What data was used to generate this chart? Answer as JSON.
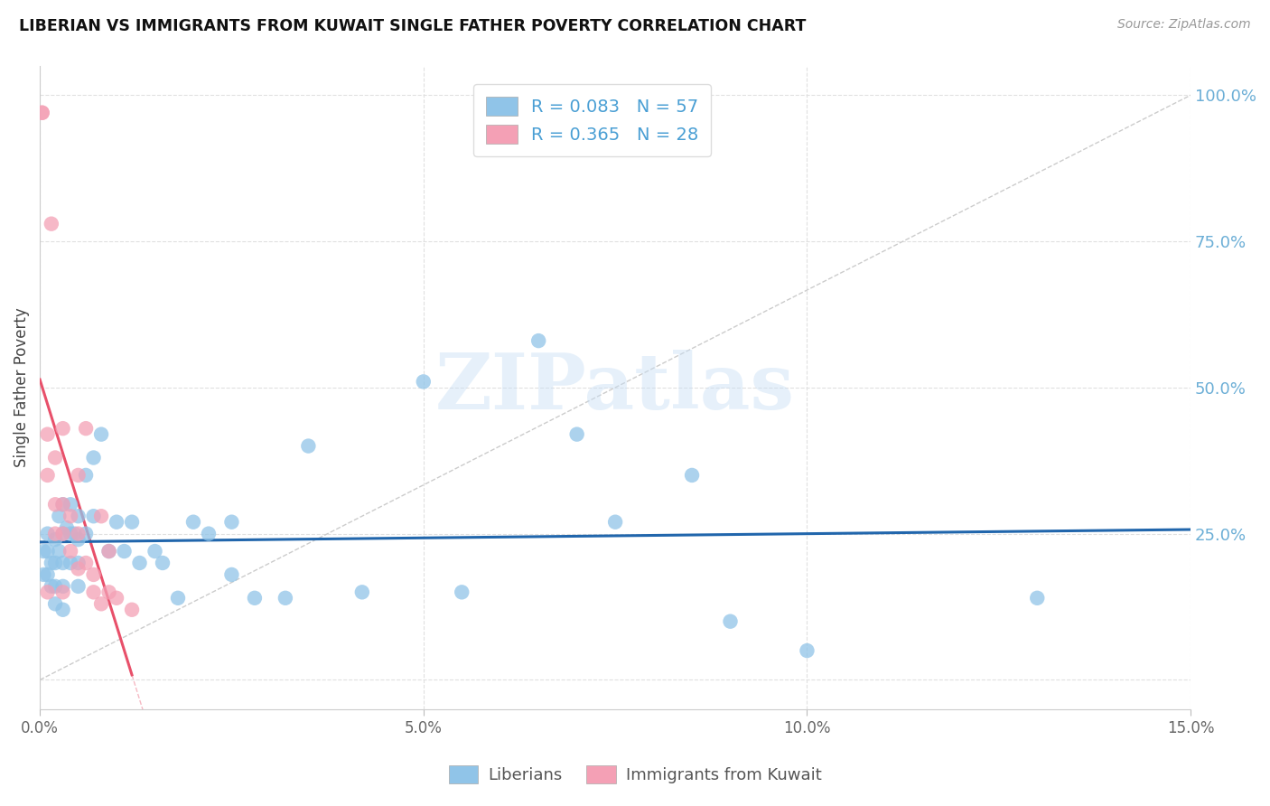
{
  "title": "LIBERIAN VS IMMIGRANTS FROM KUWAIT SINGLE FATHER POVERTY CORRELATION CHART",
  "source": "Source: ZipAtlas.com",
  "ylabel": "Single Father Poverty",
  "watermark": "ZIPatlas",
  "legend_label1": "Liberians",
  "legend_label2": "Immigrants from Kuwait",
  "R1": 0.083,
  "N1": 57,
  "R2": 0.365,
  "N2": 28,
  "color_blue": "#90c4e8",
  "color_pink": "#f4a0b5",
  "color_blue_line": "#2166ac",
  "color_pink_line": "#e8506a",
  "xlim": [
    0,
    0.15
  ],
  "ylim": [
    -0.02,
    1.05
  ],
  "plot_ylim": [
    0,
    1.0
  ],
  "yticks_right": [
    0.25,
    0.5,
    0.75,
    1.0
  ],
  "ytick_labels_right": [
    "25.0%",
    "50.0%",
    "75.0%",
    "100.0%"
  ],
  "xticks": [
    0.0,
    0.05,
    0.1,
    0.15
  ],
  "xtick_labels": [
    "0.0%",
    "5.0%",
    "10.0%",
    "15.0%"
  ],
  "liberian_x": [
    0.0005,
    0.0005,
    0.001,
    0.001,
    0.001,
    0.0015,
    0.0015,
    0.002,
    0.002,
    0.002,
    0.002,
    0.0025,
    0.0025,
    0.003,
    0.003,
    0.003,
    0.003,
    0.003,
    0.0035,
    0.004,
    0.004,
    0.004,
    0.0045,
    0.005,
    0.005,
    0.005,
    0.005,
    0.006,
    0.006,
    0.007,
    0.007,
    0.008,
    0.009,
    0.01,
    0.011,
    0.012,
    0.013,
    0.015,
    0.016,
    0.018,
    0.02,
    0.022,
    0.025,
    0.025,
    0.028,
    0.032,
    0.035,
    0.042,
    0.05,
    0.055,
    0.065,
    0.07,
    0.075,
    0.085,
    0.09,
    0.1,
    0.13
  ],
  "liberian_y": [
    0.22,
    0.18,
    0.25,
    0.22,
    0.18,
    0.2,
    0.16,
    0.24,
    0.2,
    0.16,
    0.13,
    0.28,
    0.22,
    0.3,
    0.25,
    0.2,
    0.16,
    0.12,
    0.26,
    0.3,
    0.25,
    0.2,
    0.25,
    0.28,
    0.24,
    0.2,
    0.16,
    0.35,
    0.25,
    0.38,
    0.28,
    0.42,
    0.22,
    0.27,
    0.22,
    0.27,
    0.2,
    0.22,
    0.2,
    0.14,
    0.27,
    0.25,
    0.27,
    0.18,
    0.14,
    0.14,
    0.4,
    0.15,
    0.51,
    0.15,
    0.58,
    0.42,
    0.27,
    0.35,
    0.1,
    0.05,
    0.14
  ],
  "kuwait_x": [
    0.0003,
    0.0003,
    0.001,
    0.001,
    0.001,
    0.0015,
    0.002,
    0.002,
    0.002,
    0.003,
    0.003,
    0.003,
    0.003,
    0.004,
    0.004,
    0.005,
    0.005,
    0.005,
    0.006,
    0.006,
    0.007,
    0.007,
    0.008,
    0.008,
    0.009,
    0.009,
    0.01,
    0.012
  ],
  "kuwait_y": [
    0.97,
    0.97,
    0.42,
    0.35,
    0.15,
    0.78,
    0.38,
    0.3,
    0.25,
    0.43,
    0.3,
    0.25,
    0.15,
    0.28,
    0.22,
    0.35,
    0.25,
    0.19,
    0.43,
    0.2,
    0.18,
    0.15,
    0.28,
    0.13,
    0.22,
    0.15,
    0.14,
    0.12
  ]
}
